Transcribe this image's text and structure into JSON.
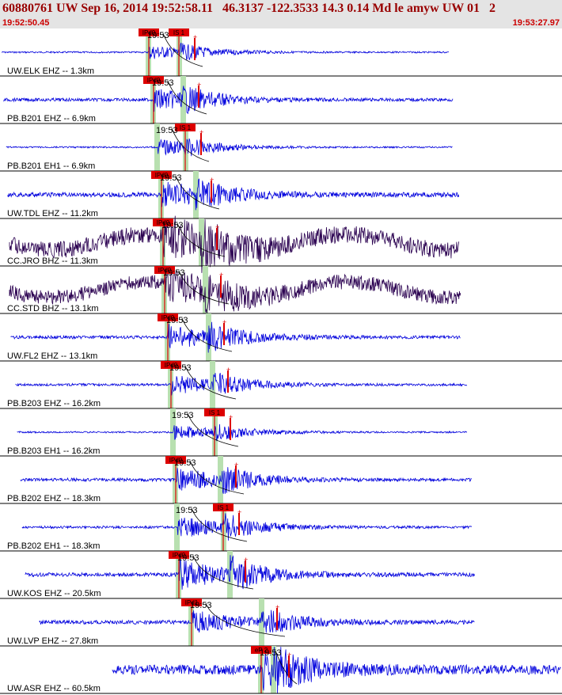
{
  "header": {
    "title": "60880761 UW Sep 16, 2014 19:52:58.11   46.3137 -122.3533 14.3 0.14 Md le amyw UW 01   2",
    "start_time": "19:52:50.45",
    "end_time": "19:53:27.97"
  },
  "colors": {
    "trace_blue": "#0000dd",
    "trace_dark": "#2a0050",
    "pick_red": "#dd0000",
    "window_green": "#b8e0b0",
    "header_text": "#990000"
  },
  "traces": [
    {
      "label": "UW.ELK EHZ -- 1.3km",
      "time_label": "19:53",
      "picks": [
        "IPd0",
        "IS 1"
      ],
      "color": "blue"
    },
    {
      "label": "PB.B201 EHZ -- 6.9km",
      "time_label": "19:53",
      "picks": [
        "IPd0"
      ],
      "color": "blue"
    },
    {
      "label": "PB.B201 EH1 -- 6.9km",
      "time_label": "19:53",
      "picks": [
        "IS 1"
      ],
      "color": "blue"
    },
    {
      "label": "UW.TDL EHZ -- 11.2km",
      "time_label": "19:53",
      "picks": [
        "IPd0"
      ],
      "color": "blue"
    },
    {
      "label": "CC.JRO BHZ -- 11.3km",
      "time_label": "19:53",
      "picks": [
        "IPd0"
      ],
      "color": "dark"
    },
    {
      "label": "CC.STD BHZ -- 13.1km",
      "time_label": "19:53",
      "picks": [
        "IPd0"
      ],
      "color": "dark"
    },
    {
      "label": "UW.FL2 EHZ -- 13.1km",
      "time_label": "19:53",
      "picks": [
        "IPd0"
      ],
      "color": "blue"
    },
    {
      "label": "PB.B203 EHZ -- 16.2km",
      "time_label": "19:53",
      "picks": [
        "IPd0"
      ],
      "color": "blue"
    },
    {
      "label": "PB.B203 EH1 -- 16.2km",
      "time_label": "19:53",
      "picks": [
        "IS 1"
      ],
      "color": "blue"
    },
    {
      "label": "PB.B202 EHZ -- 18.3km",
      "time_label": "19:53",
      "picks": [
        "IPd0"
      ],
      "color": "blue"
    },
    {
      "label": "PB.B202 EH1 -- 18.3km",
      "time_label": "19:53",
      "picks": [
        "IS 1"
      ],
      "color": "blue"
    },
    {
      "label": "UW.KOS EHZ -- 20.5km",
      "time_label": "19:53",
      "picks": [
        "IPd0"
      ],
      "color": "blue"
    },
    {
      "label": "UW.LVP EHZ -- 27.8km",
      "time_label": "19:53",
      "picks": [
        "IPd1"
      ],
      "color": "blue"
    },
    {
      "label": "UW.ASR EHZ -- 60.5km",
      "time_label": "19:53",
      "picks": [
        "eP 2"
      ],
      "color": "blue"
    }
  ]
}
